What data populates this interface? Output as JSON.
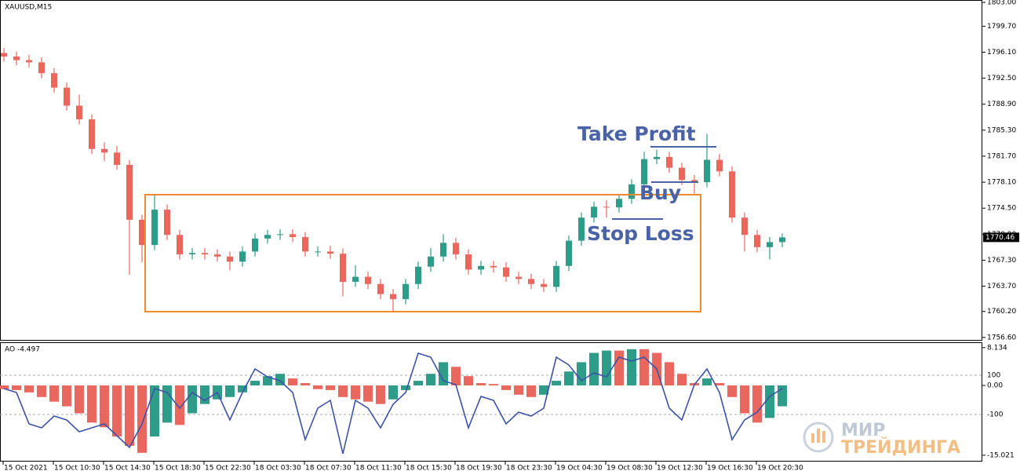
{
  "chart_data": [
    {
      "type": "candlestick",
      "title": "XAUUSD,M15",
      "x": [
        1.25,
        5.25,
        9.25,
        13.25,
        17.25,
        21.25,
        25.25,
        29.25,
        33.25,
        37.25,
        41.25,
        45.25,
        49.25,
        53.25,
        57.25,
        61.25,
        65.25,
        69.25,
        73.25,
        77.25,
        81.25,
        85.25,
        89.25,
        93.25,
        97.25,
        101.25,
        105.25,
        109.25,
        113.25,
        117.25,
        121.25,
        125.25,
        129.25,
        133.25,
        137.25,
        141.25,
        145.25,
        149.25,
        153.25,
        157.25,
        161.25,
        165.25,
        169.25,
        173.25,
        177.25,
        181.25,
        185.25,
        189.25,
        193.25,
        197.25,
        201.25,
        205.25,
        209.25,
        213.25,
        217.25,
        221.25,
        225.25,
        229.25,
        233.25,
        237.25,
        241.25,
        245.25,
        249.25
      ],
      "open": [
        1796.0,
        1795.5,
        1795.0,
        1794.7,
        1793.2,
        1791.2,
        1788.7,
        1786.8,
        1782.7,
        1782.2,
        1780.5,
        1772.9,
        1769.4,
        1774.3,
        1770.8,
        1768.1,
        1768.3,
        1768.1,
        1767.8,
        1767.1,
        1768.5,
        1770.3,
        1770.8,
        1770.9,
        1770.5,
        1768.5,
        1768.5,
        1768.2,
        1764.3,
        1765.0,
        1764.0,
        1762.6,
        1761.9,
        1764.0,
        1766.4,
        1767.8,
        1769.7,
        1768.1,
        1766.0,
        1766.5,
        1766.3,
        1765.0,
        1764.7,
        1764.0,
        1763.6,
        1766.5,
        1770.0,
        1773.2,
        1774.7,
        1774.6,
        1775.8,
        1777.8,
        1781.3,
        1781.6,
        1780.1,
        1778.4,
        1778.1,
        1781.2,
        1779.6,
        1773.2,
        1770.8,
        1769.1,
        1769.8
      ],
      "high": [
        1796.7,
        1796.2,
        1795.7,
        1795.4,
        1793.9,
        1791.9,
        1790.2,
        1787.5,
        1783.6,
        1783.1,
        1781.2,
        1773.6,
        1776.5,
        1775.0,
        1771.5,
        1769.0,
        1769.0,
        1768.8,
        1768.5,
        1769.2,
        1771.0,
        1771.5,
        1771.6,
        1771.6,
        1771.2,
        1769.2,
        1769.3,
        1768.9,
        1766.6,
        1765.7,
        1764.7,
        1763.3,
        1764.7,
        1767.1,
        1769.0,
        1770.9,
        1770.4,
        1768.8,
        1767.2,
        1767.2,
        1767.0,
        1765.7,
        1765.4,
        1764.7,
        1767.2,
        1770.7,
        1773.9,
        1775.4,
        1775.6,
        1776.5,
        1778.5,
        1782.3,
        1782.6,
        1782.3,
        1780.8,
        1779.1,
        1784.8,
        1782.0,
        1780.3,
        1773.9,
        1771.5,
        1770.5,
        1771.0
      ],
      "low": [
        1794.8,
        1794.3,
        1794.0,
        1792.5,
        1790.5,
        1788.0,
        1786.1,
        1782.0,
        1781.0,
        1779.8,
        1765.3,
        1767.0,
        1768.7,
        1770.1,
        1767.4,
        1767.4,
        1767.4,
        1767.1,
        1765.9,
        1766.4,
        1767.8,
        1769.6,
        1770.1,
        1769.8,
        1767.8,
        1767.8,
        1767.5,
        1762.3,
        1763.6,
        1763.3,
        1761.9,
        1760.3,
        1761.2,
        1763.3,
        1765.7,
        1767.1,
        1767.4,
        1765.3,
        1765.3,
        1765.6,
        1764.3,
        1764.0,
        1763.3,
        1762.9,
        1762.9,
        1765.8,
        1769.3,
        1772.5,
        1773.2,
        1773.9,
        1775.1,
        1777.1,
        1780.6,
        1779.4,
        1777.7,
        1776.5,
        1777.4,
        1778.9,
        1772.5,
        1768.5,
        1768.4,
        1767.4,
        1769.1
      ],
      "close": [
        1795.5,
        1795.0,
        1794.7,
        1793.2,
        1791.2,
        1788.7,
        1786.8,
        1782.7,
        1782.2,
        1780.5,
        1772.9,
        1769.4,
        1774.3,
        1770.8,
        1768.1,
        1768.3,
        1768.1,
        1767.8,
        1767.1,
        1768.5,
        1770.3,
        1770.8,
        1770.9,
        1770.5,
        1768.5,
        1768.5,
        1768.2,
        1764.3,
        1765.0,
        1764.0,
        1762.6,
        1761.9,
        1764.0,
        1766.4,
        1767.8,
        1769.7,
        1768.1,
        1766.0,
        1766.5,
        1766.3,
        1765.0,
        1764.7,
        1764.0,
        1763.6,
        1766.5,
        1770.0,
        1773.2,
        1774.7,
        1774.6,
        1775.8,
        1777.8,
        1781.3,
        1781.6,
        1780.1,
        1778.4,
        1778.1,
        1781.2,
        1779.6,
        1773.2,
        1770.8,
        1769.1,
        1769.8,
        1770.46
      ],
      "up_color": "#2f9c89",
      "down_color": "#e9675d",
      "xlim": [
        0,
        313
      ],
      "ylim": [
        1756.15,
        1803.33
      ],
      "yticks": [
        {
          "value": 1803.0,
          "label": "1803.00"
        },
        {
          "value": 1799.7,
          "label": "1799.70"
        },
        {
          "value": 1796.1,
          "label": "1796.10"
        },
        {
          "value": 1792.5,
          "label": "1792.50"
        },
        {
          "value": 1788.9,
          "label": "1788.90"
        },
        {
          "value": 1785.3,
          "label": "1785.30"
        },
        {
          "value": 1781.7,
          "label": "1781.70"
        },
        {
          "value": 1778.1,
          "label": "1778.10"
        },
        {
          "value": 1774.5,
          "label": "1774.50"
        },
        {
          "value": 1770.9,
          "label": "1770.90"
        },
        {
          "value": 1767.3,
          "label": "1767.30"
        },
        {
          "value": 1763.7,
          "label": "1763.70"
        },
        {
          "value": 1760.2,
          "label": "1760.20"
        },
        {
          "value": 1756.6,
          "label": "1756.60"
        }
      ],
      "last_price": 1770.46,
      "annotations": [
        "Take Profit",
        "Buy",
        "Stop Loss"
      ]
    },
    {
      "type": "bar",
      "title": "AO -4.497",
      "x": [
        1.25,
        5.25,
        9.25,
        13.25,
        17.25,
        21.25,
        25.25,
        29.25,
        33.25,
        37.25,
        41.25,
        45.25,
        49.25,
        53.25,
        57.25,
        61.25,
        65.25,
        69.25,
        73.25,
        77.25,
        81.25,
        85.25,
        89.25,
        93.25,
        97.25,
        101.25,
        105.25,
        109.25,
        113.25,
        117.25,
        121.25,
        125.25,
        129.25,
        133.25,
        137.25,
        141.25,
        145.25,
        149.25,
        153.25,
        157.25,
        161.25,
        165.25,
        169.25,
        173.25,
        177.25,
        181.25,
        185.25,
        189.25,
        193.25,
        197.25,
        201.25,
        205.25,
        209.25,
        213.25,
        217.25,
        221.25,
        225.25,
        229.25,
        233.25,
        237.25,
        241.25,
        245.25,
        249.25
      ],
      "series": [
        {
          "values": [
            -0.8,
            -1,
            -1.5,
            -2.5,
            -3.5,
            -4.5,
            -6,
            -8,
            -9,
            -11,
            -13,
            -14.5,
            -11,
            -8,
            -8.5,
            -6,
            -4,
            -3,
            -2.5,
            -1.5,
            1,
            2,
            2.5,
            1.5,
            0.5,
            -0.8,
            -1,
            -2.5,
            -3,
            -3.5,
            -4,
            -3,
            -1,
            1,
            2.5,
            5,
            4,
            2,
            0.5,
            0.3,
            -1,
            -2,
            -2.5,
            -2,
            1,
            3,
            5,
            7,
            7.5,
            7.5,
            7.8,
            7.8,
            7,
            5,
            2.5,
            0.5,
            1.5,
            0.5,
            -2.5,
            -6,
            -8,
            -7,
            -4.497
          ],
          "up_color": "#2f9c89",
          "down_color": "#e9675d"
        },
        {
          "type": "line",
          "axis": "y2",
          "color": "#3c52a8",
          "values": [
            32,
            12,
            -148,
            -168,
            -108,
            -128,
            -188,
            -168,
            -148,
            -208,
            -268,
            -148,
            32,
            12,
            -68,
            12,
            -28,
            12,
            -128,
            12,
            132,
            92,
            72,
            12,
            -228,
            -68,
            -28,
            -300,
            -28,
            -68,
            -168,
            -48,
            12,
            212,
            192,
            72,
            52,
            -168,
            -8,
            -28,
            -148,
            -88,
            -108,
            -68,
            192,
            152,
            72,
            112,
            92,
            192,
            172,
            192,
            132,
            -68,
            -128,
            52,
            132,
            12,
            -228,
            -128,
            -88,
            -8,
            32
          ]
        }
      ],
      "xlim": [
        0,
        313
      ],
      "ylim": [
        -16.39,
        9.12
      ],
      "yticks": [
        8.134,
        {
          "value": 0,
          "label": "0.00"
        },
        -15.021
      ],
      "y2lim": [
        -340,
        264
      ],
      "y2ticks": [
        100,
        -100
      ],
      "xticks": [
        {
          "value": 1,
          "label": "15 Oct 2021"
        },
        {
          "value": 17,
          "label": "15 Oct 10:30"
        },
        {
          "value": 33,
          "label": "15 Oct 14:30"
        },
        {
          "value": 49,
          "label": "15 Oct 18:30"
        },
        {
          "value": 65,
          "label": "15 Oct 22:30"
        },
        {
          "value": 81,
          "label": "18 Oct 03:30"
        },
        {
          "value": 97,
          "label": "18 Oct 07:30"
        },
        {
          "value": 113,
          "label": "18 Oct 11:30"
        },
        {
          "value": 129,
          "label": "18 Oct 15:30"
        },
        {
          "value": 145,
          "label": "18 Oct 19:30"
        },
        {
          "value": 161,
          "label": "18 Oct 23:30"
        },
        {
          "value": 177,
          "label": "19 Oct 04:30"
        },
        {
          "value": 193,
          "label": "19 Oct 08:30"
        },
        {
          "value": 209,
          "label": "19 Oct 12:30"
        },
        {
          "value": 225,
          "label": "19 Oct 16:30"
        },
        {
          "value": 241,
          "label": "19 Oct 20:30"
        }
      ]
    }
  ],
  "watermark": [
    "МИР",
    "ТРЕЙДИНГА"
  ]
}
